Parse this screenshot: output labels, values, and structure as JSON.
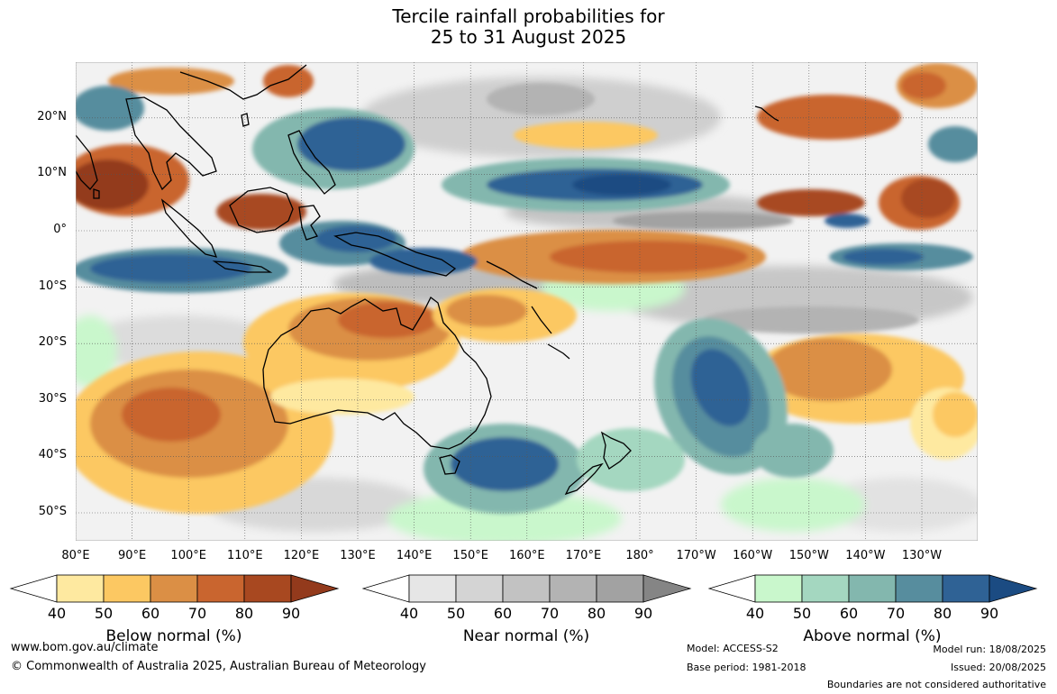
{
  "title": {
    "line1": "Tercile rainfall probabilities for",
    "line2": "25 to 31 August 2025"
  },
  "map": {
    "lat_labels": [
      {
        "lat": 20,
        "label": "20°N"
      },
      {
        "lat": 10,
        "label": "10°N"
      },
      {
        "lat": 0,
        "label": "0°"
      },
      {
        "lat": -10,
        "label": "10°S"
      },
      {
        "lat": -20,
        "label": "20°S"
      },
      {
        "lat": -30,
        "label": "30°S"
      },
      {
        "lat": -40,
        "label": "40°S"
      },
      {
        "lat": -50,
        "label": "50°S"
      }
    ],
    "lon_labels": [
      {
        "lon": 80,
        "label": "80°E"
      },
      {
        "lon": 90,
        "label": "90°E"
      },
      {
        "lon": 100,
        "label": "100°E"
      },
      {
        "lon": 110,
        "label": "110°E"
      },
      {
        "lon": 120,
        "label": "120°E"
      },
      {
        "lon": 130,
        "label": "130°E"
      },
      {
        "lon": 140,
        "label": "140°E"
      },
      {
        "lon": 150,
        "label": "150°E"
      },
      {
        "lon": 160,
        "label": "160°E"
      },
      {
        "lon": 170,
        "label": "170°E"
      },
      {
        "lon": 180,
        "label": "180°"
      },
      {
        "lon": 190,
        "label": "170°W"
      },
      {
        "lon": 200,
        "label": "160°W"
      },
      {
        "lon": 210,
        "label": "150°W"
      },
      {
        "lon": 220,
        "label": "140°W"
      },
      {
        "lon": 230,
        "label": "130°W"
      }
    ],
    "lon_range": [
      80,
      240
    ],
    "lat_range": [
      -55,
      30
    ]
  },
  "legend": {
    "ticks": [
      "40",
      "50",
      "60",
      "70",
      "80",
      "90"
    ],
    "below": {
      "title": "Below normal (%)",
      "colors": [
        "#fee9a0",
        "#fcc862",
        "#db8f45",
        "#c9652f",
        "#a84820"
      ],
      "extend_color": "#933a1c"
    },
    "near": {
      "title": "Near normal (%)",
      "colors": [
        "#e6e6e6",
        "#d4d4d4",
        "#c2c2c2",
        "#b3b3b3",
        "#a2a2a2"
      ],
      "extend_color": "#858585"
    },
    "above": {
      "title": "Above normal (%)",
      "colors": [
        "#c9f7cc",
        "#a4d7c0",
        "#83b7ae",
        "#578d9e",
        "#2f6295"
      ],
      "extend_color": "#1b4b82"
    }
  },
  "footer": {
    "website": "www.bom.gov.au/climate",
    "copyright": "© Commonwealth of Australia 2025, Australian Bureau of Meteorology",
    "model": "Model: ACCESS-S2",
    "base_period": "Base period: 1981-2018",
    "model_run": "Model run: 18/08/2025",
    "issued": "Issued: 20/08/2025",
    "disclaimer": "Boundaries are not considered authoritative"
  }
}
